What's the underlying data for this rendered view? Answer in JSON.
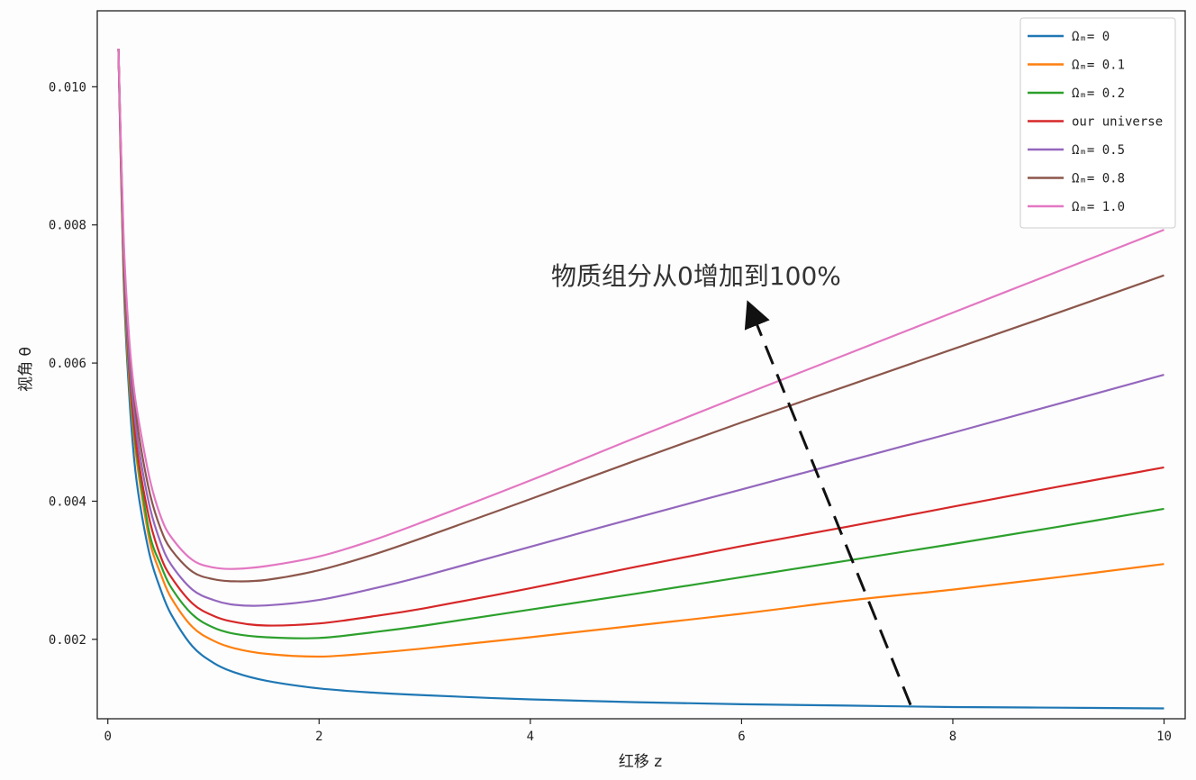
{
  "chart_data": {
    "type": "line",
    "title": "",
    "xlabel": "红移 z",
    "ylabel": "视角 θ",
    "xlim": [
      -0.1,
      10.2
    ],
    "ylim": [
      0.00085,
      0.0111
    ],
    "xticks": [
      0,
      2,
      4,
      6,
      8,
      10
    ],
    "xtick_labels": [
      "0",
      "2",
      "4",
      "6",
      "8",
      "10"
    ],
    "yticks": [
      0.002,
      0.004,
      0.006,
      0.008,
      0.01
    ],
    "ytick_labels": [
      "0.002",
      "0.004",
      "0.006",
      "0.008",
      "0.010"
    ],
    "grid": false,
    "legend_position": "top-right",
    "x": [
      0.1,
      0.15,
      0.2,
      0.25,
      0.3,
      0.4,
      0.5,
      0.6,
      0.8,
      1.0,
      1.2,
      1.5,
      2.0,
      2.5,
      3.0,
      4.0,
      5.0,
      6.0,
      7.0,
      8.0,
      9.0,
      10.0
    ],
    "series": [
      {
        "name": "Ωₘ= 0",
        "color": "#1f77b4",
        "values": [
          0.01055,
          0.0072,
          0.0056,
          0.0046,
          0.004,
          0.0032,
          0.00272,
          0.00236,
          0.0019,
          0.00166,
          0.00152,
          0.0014,
          0.00129,
          0.00123,
          0.00119,
          0.00113,
          0.00109,
          0.00106,
          0.00104,
          0.00102,
          0.00101,
          0.001
        ]
      },
      {
        "name": "Ωₘ= 0.1",
        "color": "#ff7f0e",
        "values": [
          0.01055,
          0.0073,
          0.0058,
          0.0049,
          0.0043,
          0.0034,
          0.00295,
          0.0026,
          0.00218,
          0.00198,
          0.00187,
          0.00179,
          0.00175,
          0.0018,
          0.00187,
          0.00203,
          0.0022,
          0.00237,
          0.00256,
          0.00272,
          0.0029,
          0.00309
        ]
      },
      {
        "name": "Ωₘ= 0.2",
        "color": "#2ca02c",
        "values": [
          0.01055,
          0.0074,
          0.0059,
          0.005,
          0.0044,
          0.0035,
          0.00308,
          0.00275,
          0.00236,
          0.00217,
          0.00208,
          0.00203,
          0.00202,
          0.0021,
          0.0022,
          0.00243,
          0.00266,
          0.0029,
          0.00314,
          0.00338,
          0.00363,
          0.00389
        ]
      },
      {
        "name": "our universe",
        "color": "#d62728",
        "values": [
          0.01055,
          0.0075,
          0.006,
          0.0051,
          0.0045,
          0.0037,
          0.0032,
          0.0029,
          0.00252,
          0.00234,
          0.00225,
          0.0022,
          0.00223,
          0.00233,
          0.00245,
          0.00274,
          0.00305,
          0.00335,
          0.00363,
          0.00392,
          0.00421,
          0.00449
        ]
      },
      {
        "name": "Ωₘ= 0.5",
        "color": "#9467bd",
        "values": [
          0.01055,
          0.0076,
          0.0061,
          0.0053,
          0.0047,
          0.0039,
          0.0034,
          0.00308,
          0.00272,
          0.00257,
          0.0025,
          0.00249,
          0.00257,
          0.00273,
          0.00292,
          0.00334,
          0.00376,
          0.00417,
          0.00458,
          0.00499,
          0.00541,
          0.00583
        ]
      },
      {
        "name": "Ωₘ= 0.8",
        "color": "#8c564b",
        "values": [
          0.01055,
          0.0077,
          0.0063,
          0.0055,
          0.0049,
          0.0041,
          0.0036,
          0.0033,
          0.00298,
          0.00287,
          0.00284,
          0.00286,
          0.003,
          0.00322,
          0.00348,
          0.00403,
          0.00459,
          0.00514,
          0.00567,
          0.0062,
          0.00673,
          0.00727
        ]
      },
      {
        "name": "Ωₘ= 1.0",
        "color": "#e377c2",
        "values": [
          0.01055,
          0.0078,
          0.0064,
          0.0056,
          0.0051,
          0.0043,
          0.00378,
          0.00348,
          0.00315,
          0.00304,
          0.00302,
          0.00306,
          0.0032,
          0.00343,
          0.00371,
          0.0043,
          0.00492,
          0.00553,
          0.00613,
          0.00673,
          0.00733,
          0.00793
        ]
      }
    ],
    "annotation": {
      "text": "物质组分从0增加到100%",
      "arrow_from": [
        7.6,
        0.00105
      ],
      "arrow_to": [
        6.1,
        0.00673
      ]
    }
  }
}
